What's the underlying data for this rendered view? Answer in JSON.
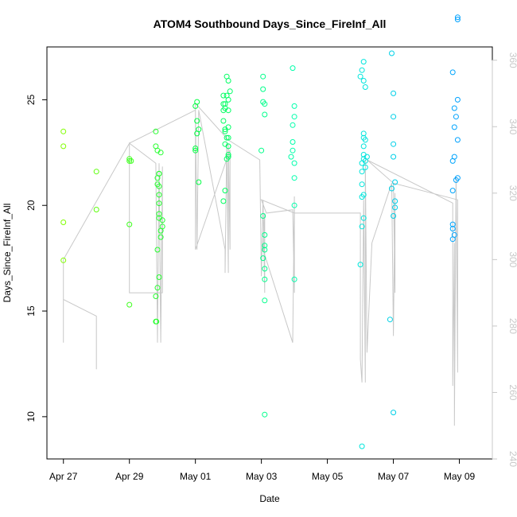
{
  "chart_data": {
    "type": "scatter",
    "title": "ATOM4 Southbound Days_Since_FireInf_All",
    "xlabel": "Date",
    "ylabel": "Days_Since_FireInf_All",
    "x_ticks": [
      "Apr 27",
      "Apr 29",
      "May 01",
      "May 03",
      "May 05",
      "May 07",
      "May 09"
    ],
    "x_tick_values": [
      0,
      2,
      4,
      6,
      8,
      10,
      12
    ],
    "xlim": [
      -0.5,
      13.0
    ],
    "ylim": [
      8.0,
      27.5
    ],
    "y_ticks": [
      10,
      15,
      20,
      25
    ],
    "y2_ticks": [
      240,
      260,
      280,
      300,
      320,
      340,
      360
    ],
    "y2lim": [
      240,
      364
    ],
    "grid": false,
    "color_gradient": [
      "#80ff00",
      "#00ff40",
      "#00ffd0",
      "#00a0ff"
    ],
    "series": [
      {
        "values": [
          [
            0.0,
            23.5
          ],
          [
            0.0,
            22.8
          ],
          [
            0.0,
            19.2
          ],
          [
            0.0,
            17.4
          ],
          [
            1.0,
            21.6
          ],
          [
            1.0,
            19.8
          ],
          [
            2.0,
            22.1
          ],
          [
            2.0,
            22.2
          ],
          [
            2.05,
            22.1
          ],
          [
            2.0,
            19.1
          ],
          [
            2.0,
            15.3
          ],
          [
            2.8,
            23.5
          ],
          [
            2.8,
            22.8
          ],
          [
            2.85,
            22.6
          ],
          [
            2.85,
            21.3
          ],
          [
            2.85,
            21.0
          ],
          [
            2.9,
            21.5
          ],
          [
            2.9,
            20.9
          ],
          [
            2.9,
            20.5
          ],
          [
            2.9,
            20.1
          ],
          [
            2.9,
            19.6
          ],
          [
            2.9,
            19.4
          ],
          [
            2.85,
            17.9
          ],
          [
            2.8,
            15.7
          ],
          [
            2.85,
            16.1
          ],
          [
            2.9,
            16.6
          ],
          [
            2.8,
            14.5
          ],
          [
            2.82,
            14.5
          ],
          [
            2.95,
            22.5
          ],
          [
            3.0,
            19.3
          ],
          [
            3.0,
            19.0
          ],
          [
            2.95,
            18.5
          ],
          [
            2.95,
            18.8
          ],
          [
            2.9,
            21.5
          ],
          [
            4.0,
            24.7
          ],
          [
            4.05,
            24.9
          ],
          [
            4.0,
            22.6
          ],
          [
            4.0,
            22.7
          ],
          [
            4.05,
            23.4
          ],
          [
            4.1,
            23.6
          ],
          [
            4.05,
            24.0
          ],
          [
            4.1,
            21.1
          ],
          [
            4.85,
            25.2
          ],
          [
            4.85,
            24.8
          ],
          [
            4.85,
            24.5
          ],
          [
            4.85,
            24.0
          ],
          [
            4.9,
            23.6
          ],
          [
            4.9,
            23.5
          ],
          [
            4.95,
            23.2
          ],
          [
            4.9,
            22.9
          ],
          [
            4.95,
            22.2
          ],
          [
            4.9,
            20.7
          ],
          [
            4.85,
            20.2
          ],
          [
            4.95,
            25.2
          ],
          [
            5.0,
            25.0
          ],
          [
            5.0,
            24.5
          ],
          [
            5.0,
            23.7
          ],
          [
            5.0,
            23.2
          ],
          [
            5.0,
            22.8
          ],
          [
            5.0,
            22.4
          ],
          [
            4.95,
            26.1
          ],
          [
            5.0,
            25.9
          ],
          [
            5.05,
            25.4
          ],
          [
            4.9,
            24.8
          ],
          [
            4.9,
            24.6
          ],
          [
            5.0,
            22.3
          ]
        ],
        "color": "#55ff15"
      },
      {
        "values": [
          [
            6.05,
            26.1
          ],
          [
            6.05,
            25.5
          ],
          [
            6.05,
            24.9
          ],
          [
            6.1,
            24.8
          ],
          [
            6.1,
            24.3
          ],
          [
            6.0,
            22.6
          ],
          [
            6.05,
            19.5
          ],
          [
            6.1,
            18.6
          ],
          [
            6.1,
            18.1
          ],
          [
            6.1,
            17.9
          ],
          [
            6.05,
            17.5
          ],
          [
            6.1,
            17.0
          ],
          [
            6.1,
            16.5
          ],
          [
            6.1,
            15.5
          ],
          [
            6.1,
            10.1
          ],
          [
            6.95,
            26.5
          ],
          [
            7.0,
            24.7
          ],
          [
            7.0,
            24.2
          ],
          [
            6.95,
            23.8
          ],
          [
            6.95,
            23.0
          ],
          [
            6.95,
            22.6
          ],
          [
            6.9,
            22.3
          ],
          [
            7.0,
            22.0
          ],
          [
            7.0,
            21.3
          ],
          [
            7.0,
            20.0
          ],
          [
            7.0,
            16.5
          ],
          [
            9.0,
            26.1
          ],
          [
            9.1,
            26.8
          ],
          [
            9.05,
            26.4
          ],
          [
            9.1,
            25.9
          ],
          [
            9.15,
            25.6
          ],
          [
            9.1,
            23.4
          ],
          [
            9.1,
            23.2
          ],
          [
            9.15,
            23.1
          ],
          [
            9.1,
            22.8
          ],
          [
            9.1,
            22.4
          ],
          [
            9.1,
            22.2
          ],
          [
            9.05,
            22.0
          ],
          [
            9.15,
            22.1
          ],
          [
            9.2,
            22.3
          ],
          [
            9.15,
            21.8
          ],
          [
            9.05,
            21.6
          ],
          [
            9.05,
            21.0
          ],
          [
            9.1,
            20.5
          ],
          [
            9.05,
            20.4
          ],
          [
            9.05,
            19.0
          ],
          [
            9.1,
            19.4
          ],
          [
            9.0,
            17.2
          ],
          [
            9.05,
            8.6
          ],
          [
            9.95,
            27.2
          ],
          [
            10.0,
            25.3
          ],
          [
            10.0,
            24.2
          ],
          [
            10.0,
            22.9
          ],
          [
            10.0,
            22.3
          ],
          [
            10.05,
            21.1
          ],
          [
            9.95,
            20.8
          ],
          [
            10.05,
            20.2
          ],
          [
            10.05,
            19.9
          ],
          [
            10.0,
            19.5
          ],
          [
            9.9,
            14.6
          ],
          [
            10.0,
            10.2
          ]
        ],
        "color": "#00ffc8"
      },
      {
        "values": [
          [
            11.8,
            26.3
          ],
          [
            11.85,
            24.6
          ],
          [
            11.9,
            24.2
          ],
          [
            11.85,
            23.7
          ],
          [
            11.85,
            22.3
          ],
          [
            11.8,
            22.1
          ],
          [
            11.8,
            20.7
          ],
          [
            11.95,
            23.1
          ],
          [
            11.95,
            25.0
          ],
          [
            11.95,
            21.3
          ],
          [
            11.9,
            21.2
          ],
          [
            11.8,
            19.1
          ],
          [
            11.8,
            18.9
          ],
          [
            11.85,
            18.6
          ],
          [
            11.8,
            18.4
          ],
          [
            11.95,
            28.8
          ],
          [
            11.95,
            28.9
          ]
        ],
        "color": "#00a8ff"
      }
    ],
    "secondary_line": {
      "axis": "right",
      "values": [
        [
          0.0,
          288
        ],
        [
          0.0,
          275
        ],
        [
          0.0,
          300
        ],
        [
          0.0,
          288
        ],
        [
          1.0,
          283
        ],
        [
          1.0,
          267
        ],
        [
          1.0,
          283
        ],
        [
          0.0,
          288
        ],
        [
          0.0,
          300
        ],
        [
          2.0,
          335
        ],
        [
          2.0,
          290
        ],
        [
          2.0,
          335
        ],
        [
          2.8,
          329
        ],
        [
          2.85,
          275
        ],
        [
          2.9,
          329
        ],
        [
          2.95,
          275
        ],
        [
          3.0,
          328
        ],
        [
          3.0,
          290
        ],
        [
          2.0,
          290
        ],
        [
          2.0,
          335
        ],
        [
          4.0,
          345
        ],
        [
          4.0,
          303
        ],
        [
          4.0,
          345
        ],
        [
          4.05,
          303
        ],
        [
          4.1,
          345
        ],
        [
          4.9,
          303
        ],
        [
          4.9,
          296
        ],
        [
          4.95,
          335
        ],
        [
          5.0,
          296
        ],
        [
          5.0,
          335
        ],
        [
          5.05,
          303
        ],
        [
          5.05,
          333
        ],
        [
          4.0,
          303
        ],
        [
          4.0,
          347
        ],
        [
          5.0,
          336
        ],
        [
          5.95,
          330
        ],
        [
          6.0,
          295
        ],
        [
          6.05,
          318
        ],
        [
          6.1,
          290
        ],
        [
          6.1,
          314
        ],
        [
          6.05,
          303
        ],
        [
          6.95,
          275
        ],
        [
          7.0,
          319
        ],
        [
          7.0,
          290
        ],
        [
          6.95,
          315
        ],
        [
          6.15,
          314
        ],
        [
          6.0,
          318
        ],
        [
          7.0,
          314
        ],
        [
          9.0,
          314
        ],
        [
          9.0,
          270
        ],
        [
          9.05,
          263
        ],
        [
          9.1,
          318
        ],
        [
          9.15,
          263
        ],
        [
          9.15,
          330
        ],
        [
          9.2,
          272
        ],
        [
          9.35,
          305
        ],
        [
          9.95,
          323
        ],
        [
          10.0,
          277
        ],
        [
          10.05,
          320
        ],
        [
          10.05,
          290
        ],
        [
          10.0,
          323
        ],
        [
          9.2,
          330
        ],
        [
          11.8,
          317
        ],
        [
          11.8,
          262
        ],
        [
          11.85,
          305
        ],
        [
          11.85,
          250
        ],
        [
          11.9,
          325
        ],
        [
          11.95,
          266
        ],
        [
          11.95,
          318
        ],
        [
          10.0,
          323
        ]
      ]
    }
  }
}
